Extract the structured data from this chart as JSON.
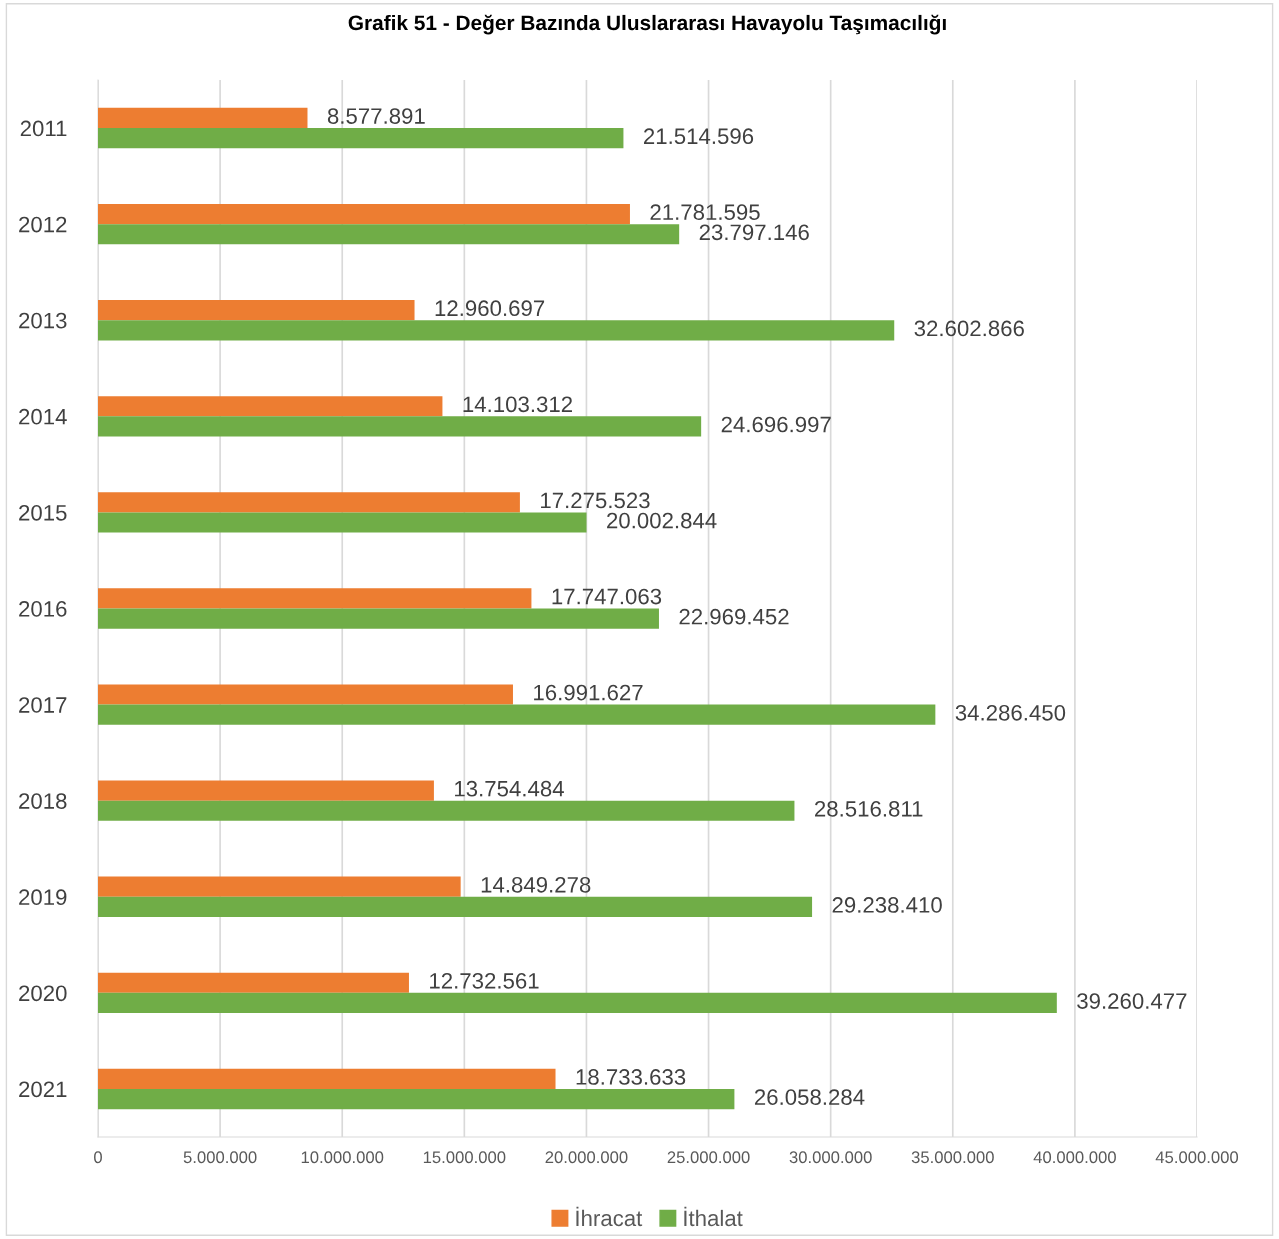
{
  "chart_data": {
    "type": "bar",
    "orientation": "horizontal",
    "title": "Grafik 51 - Değer Bazında Uluslararası Havayolu Taşımacılığı",
    "categories": [
      "2011",
      "2012",
      "2013",
      "2014",
      "2015",
      "2016",
      "2017",
      "2018",
      "2019",
      "2020",
      "2021"
    ],
    "series": [
      {
        "name": "İhracat",
        "color": "#ed7d31",
        "values": [
          8577891,
          21781595,
          12960697,
          14103312,
          17275523,
          17747063,
          16991627,
          13754484,
          14849278,
          12732561,
          18733633
        ],
        "value_labels": [
          "8.577.891",
          "21.781.595",
          "12.960.697",
          "14.103.312",
          "17.275.523",
          "17.747.063",
          "16.991.627",
          "13.754.484",
          "14.849.278",
          "12.732.561",
          "18.733.633"
        ]
      },
      {
        "name": "İthalat",
        "color": "#70ad47",
        "values": [
          21514596,
          23797146,
          32602866,
          24696997,
          20002844,
          22969452,
          34286450,
          28516811,
          29238410,
          39260477,
          26058284
        ],
        "value_labels": [
          "21.514.596",
          "23.797.146",
          "32.602.866",
          "24.696.997",
          "20.002.844",
          "22.969.452",
          "34.286.450",
          "28.516.811",
          "29.238.410",
          "39.260.477",
          "26.058.284"
        ]
      }
    ],
    "xlim": [
      0,
      45000000
    ],
    "xticks": [
      0,
      {
        "value": 5000000,
        "label": "5.000.000"
      },
      {
        "value": 10000000,
        "label": "10.000.000"
      },
      {
        "value": 15000000,
        "label": "15.000.000"
      },
      {
        "value": 20000000,
        "label": "20.000.000"
      },
      {
        "value": 25000000,
        "label": "25.000.000"
      },
      {
        "value": 30000000,
        "label": "30.000.000"
      },
      {
        "value": 35000000,
        "label": "35.000.000"
      },
      {
        "value": 40000000,
        "label": "40.000.000"
      },
      {
        "value": 45000000,
        "label": "45.000.000"
      }
    ],
    "grid": "x",
    "legend": "bottom"
  }
}
